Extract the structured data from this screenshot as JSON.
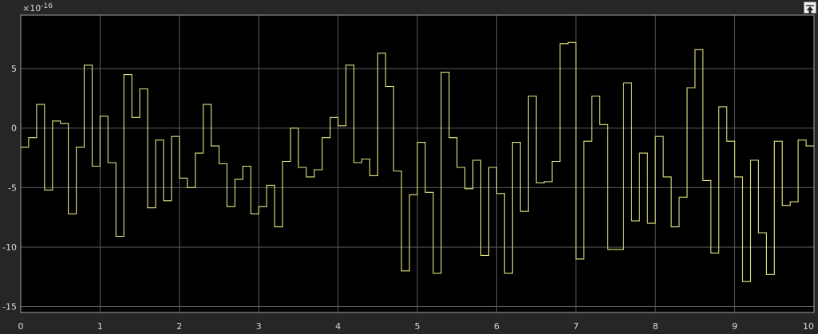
{
  "chart_data": {
    "type": "line",
    "step": true,
    "line_color": "#e6e680",
    "background_color": "#000000",
    "grid_color": "#5c5c5c",
    "grid": true,
    "xlim": [
      0,
      10
    ],
    "ylim": [
      -15.5,
      9.5
    ],
    "exponent_label": {
      "base": "×10",
      "power": "-16"
    },
    "xticks": [
      0,
      1,
      2,
      3,
      4,
      5,
      6,
      7,
      8,
      9,
      10
    ],
    "yticks": [
      5,
      0,
      -5,
      -10,
      -15
    ],
    "series": [
      {
        "x": [
          0,
          0.1,
          0.2,
          0.3,
          0.4,
          0.5,
          0.6,
          0.7,
          0.8,
          0.9,
          1.0,
          1.1,
          1.2,
          1.3,
          1.4,
          1.5,
          1.6,
          1.7,
          1.8,
          1.9,
          2.0,
          2.1,
          2.2,
          2.3,
          2.4,
          2.5,
          2.6,
          2.7,
          2.8,
          2.9,
          3.0,
          3.1,
          3.2,
          3.3,
          3.4,
          3.5,
          3.6,
          3.7,
          3.8,
          3.9,
          4.0,
          4.1,
          4.2,
          4.3,
          4.4,
          4.5,
          4.6,
          4.7,
          4.8,
          4.9,
          5.0,
          5.1,
          5.2,
          5.3,
          5.4,
          5.5,
          5.6,
          5.7,
          5.8,
          5.9,
          6.0,
          6.1,
          6.2,
          6.3,
          6.4,
          6.5,
          6.6,
          6.7,
          6.8,
          6.9,
          7.0,
          7.1,
          7.2,
          7.3,
          7.4,
          7.5,
          7.6,
          7.7,
          7.8,
          7.9,
          8.0,
          8.1,
          8.2,
          8.3,
          8.4,
          8.5,
          8.6,
          8.7,
          8.8,
          8.9,
          9.0,
          9.1,
          9.2,
          9.3,
          9.4,
          9.5,
          9.6,
          9.7,
          9.8,
          9.9
        ],
        "values": [
          -1.6,
          -0.8,
          2.0,
          -5.2,
          0.6,
          0.4,
          -7.2,
          -1.6,
          5.3,
          -3.2,
          1.0,
          -2.9,
          -9.1,
          4.5,
          0.9,
          3.3,
          -6.7,
          -1.0,
          -6.1,
          -0.7,
          -4.2,
          -5.0,
          -2.1,
          2.0,
          -1.5,
          -3.0,
          -6.6,
          -4.3,
          -3.2,
          -7.2,
          -6.6,
          -4.8,
          -8.3,
          -2.8,
          0.0,
          -3.3,
          -4.1,
          -3.5,
          -0.8,
          0.9,
          0.2,
          5.3,
          -2.9,
          -2.6,
          -4.0,
          6.3,
          3.5,
          -3.6,
          -12.0,
          -5.6,
          -1.2,
          -5.4,
          -12.2,
          4.7,
          -0.8,
          -3.3,
          -5.1,
          -2.7,
          -10.7,
          -3.3,
          -5.5,
          -12.2,
          -1.2,
          -7.0,
          2.7,
          -4.6,
          -4.5,
          -2.8,
          7.1,
          7.2,
          -11.0,
          -1.1,
          2.7,
          0.3,
          -10.2,
          -10.2,
          3.8,
          -7.8,
          -2.1,
          -8.0,
          -0.7,
          -4.1,
          -8.3,
          -5.8,
          3.4,
          6.6,
          -4.4,
          -10.5,
          1.8,
          -1.1,
          -4.1,
          -12.9,
          -2.7,
          -8.8,
          -12.3,
          -1.1,
          -6.5,
          -6.2,
          -1.0,
          -1.5
        ]
      }
    ]
  }
}
